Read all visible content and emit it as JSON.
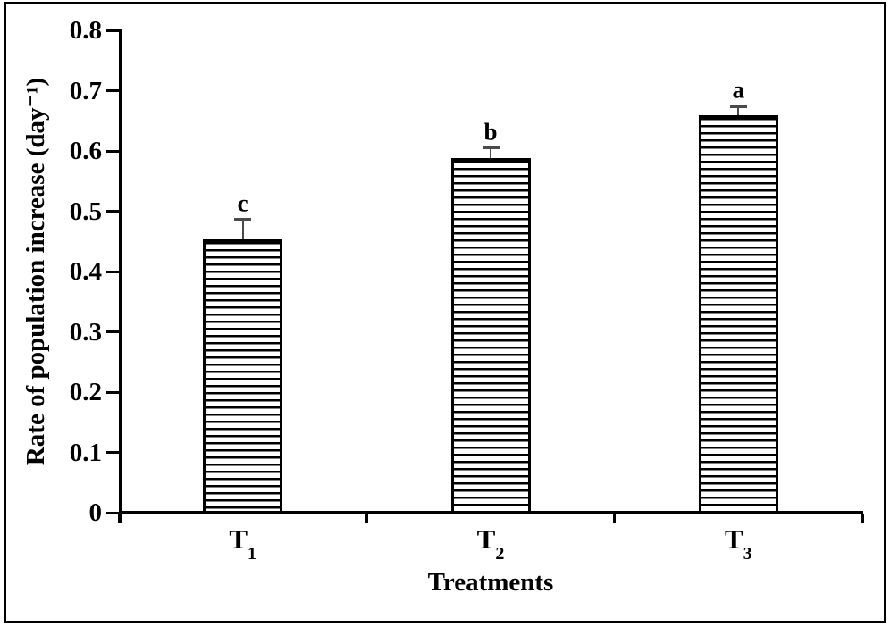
{
  "figure": {
    "background": "#ffffff",
    "frame_color": "#000000"
  },
  "chart_data": {
    "type": "bar",
    "title": "",
    "xlabel": "Treatments",
    "ylabel": "Rate of population increase (day⁻¹)",
    "ylim": [
      0,
      0.8
    ],
    "ytick_step": 0.1,
    "ytick_labels": [
      "0",
      "0.1",
      "0.2",
      "0.3",
      "0.4",
      "0.5",
      "0.6",
      "0.7",
      "0.8"
    ],
    "grid": false,
    "legend": "none",
    "bar_style": {
      "fill": "horizontal-stripe-hatch",
      "stroke_color": "#000000",
      "hatch_color": "#000000",
      "background_color": "#ffffff",
      "error_bar_color": "#4a4a4a"
    },
    "categories": [
      {
        "base": "T",
        "sub": "1"
      },
      {
        "base": "T",
        "sub": "2"
      },
      {
        "base": "T",
        "sub": "3"
      }
    ],
    "series": [
      {
        "name": "Rate of population increase",
        "values": [
          0.453,
          0.588,
          0.659
        ],
        "errors_upper": [
          0.033,
          0.017,
          0.015
        ],
        "sig_letters": [
          "c",
          "b",
          "a"
        ]
      }
    ]
  }
}
